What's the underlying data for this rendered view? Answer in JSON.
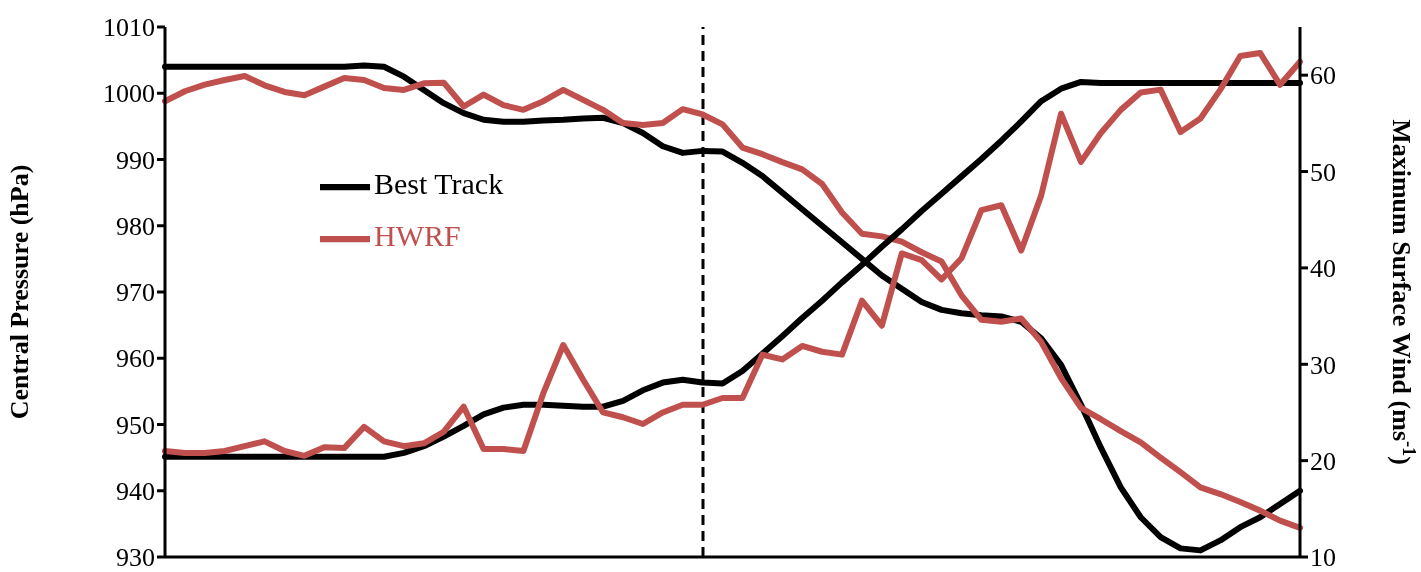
{
  "chart_data": {
    "type": "line",
    "ylabel": "Central Pressure (hPa)",
    "y2label": "Maximum Surface Wind (ms$^{-1}$)",
    "categories": [
      null,
      null,
      null,
      null,
      null,
      null,
      null,
      null,
      null,
      null,
      null,
      null,
      null,
      null,
      null,
      null,
      null,
      null,
      null,
      null,
      null,
      null,
      null,
      null,
      null,
      null,
      null,
      null,
      null,
      null,
      null,
      null,
      null,
      null,
      null,
      null,
      null,
      null,
      null,
      null,
      null,
      null,
      null,
      null,
      null,
      null,
      null,
      null,
      null,
      null,
      null,
      null,
      null,
      null,
      null,
      null,
      null,
      null
    ],
    "ylim": [
      930,
      1010
    ],
    "yticks": [
      930,
      940,
      950,
      960,
      970,
      980,
      990,
      1000,
      1010
    ],
    "y2lim": [
      10,
      65
    ],
    "y2ticks": [
      10,
      20,
      30,
      40,
      50,
      60
    ],
    "tick_labels": "y",
    "legend": "top left",
    "marker": "none",
    "line_style": "solid",
    "series": [
      {
        "name": "Best Track",
        "color": "#000000",
        "values": [
          1004,
          1004,
          1004,
          1004,
          1004,
          1004,
          1004,
          1004,
          1004,
          1004,
          1004.2,
          1004,
          1002.5,
          1000.5,
          998.5,
          997,
          996,
          995.7,
          995.7,
          995.9,
          996,
          996.2,
          996.3,
          995.5,
          994,
          992,
          991,
          991.3,
          991.2,
          989.5,
          987.5,
          985,
          982.5,
          980,
          977.5,
          975,
          972.5,
          970.5,
          968.5,
          967.3,
          966.8,
          966.5,
          966.3,
          965.5,
          963,
          959,
          953,
          946.5,
          940.5,
          936,
          933,
          931.3,
          931,
          932.5,
          934.5,
          936,
          938,
          940
        ]
      },
      {
        "name": "HWRF",
        "color": "#c0504d",
        "values": [
          998.8,
          1000.3,
          1001.3,
          1002,
          1002.6,
          1001.2,
          1000.2,
          999.7,
          1001,
          1002.3,
          1002,
          1000.8,
          1000.5,
          1001.5,
          1001.6,
          998,
          999.8,
          998.2,
          997.5,
          998.8,
          1000.5,
          999,
          997.5,
          995.5,
          995.2,
          995.5,
          997.6,
          996.8,
          995.3,
          991.8,
          990.8,
          989.6,
          988.5,
          986.3,
          982,
          978.8,
          978.4,
          977.6,
          976,
          974.6,
          969.5,
          965.8,
          965.5,
          966,
          962.5,
          957,
          952.5,
          950.8,
          949,
          947.3,
          945,
          942.8,
          940.5,
          939.5,
          938.3,
          937,
          935.5,
          934.4
        ]
      },
      {
        "color": "#000000",
        "axis": "y2",
        "values": [
          20.4,
          20.4,
          20.4,
          20.4,
          20.4,
          20.4,
          20.4,
          20.4,
          20.4,
          20.4,
          20.4,
          20.4,
          20.8,
          21.5,
          22.5,
          23.6,
          24.8,
          25.5,
          25.8,
          25.8,
          25.7,
          25.6,
          25.6,
          26.2,
          27.3,
          28.1,
          28.4,
          28.1,
          28,
          29.3,
          31.1,
          32.9,
          34.8,
          36.6,
          38.5,
          40.3,
          42.2,
          44,
          45.9,
          47.7,
          49.5,
          51.3,
          53.2,
          55.2,
          57.3,
          58.6,
          59.3,
          59.2,
          59.2,
          59.2,
          59.2,
          59.2,
          59.2,
          59.2,
          59.2,
          59.2,
          59.2,
          59.2
        ]
      },
      {
        "color": "#c0504d",
        "axis": "y2",
        "values": [
          21,
          20.8,
          20.8,
          21,
          21.5,
          22,
          21,
          20.5,
          21.4,
          21.3,
          23.5,
          22,
          21.5,
          21.8,
          23,
          25.6,
          21.2,
          21.2,
          21,
          27,
          32,
          28.4,
          25,
          24.5,
          23.8,
          25,
          25.8,
          25.8,
          26.5,
          26.5,
          31,
          30.5,
          31.9,
          31.3,
          31,
          36.6,
          34,
          41.5,
          40.8,
          38.8,
          41,
          46,
          46.5,
          41.8,
          47.5,
          56,
          51,
          54,
          56.4,
          58.2,
          58.5,
          54.1,
          55.5,
          58.5,
          62,
          62.3,
          59,
          61.4
        ]
      }
    ]
  }
}
